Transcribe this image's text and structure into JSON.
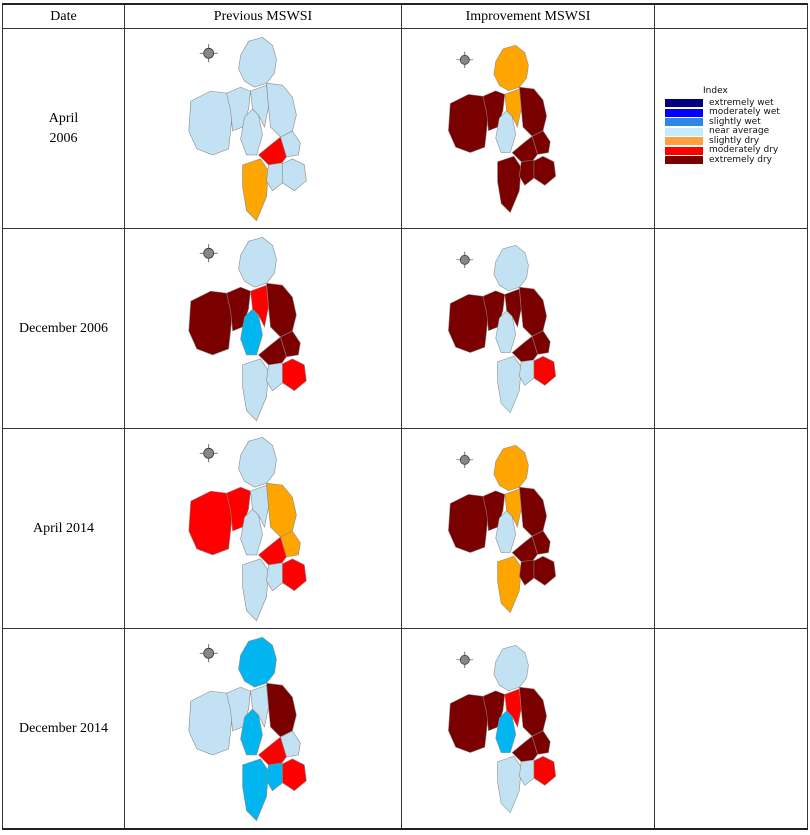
{
  "table": {
    "headers": [
      "Date",
      "Previous MSWSI",
      "Improvement MSWSI",
      ""
    ],
    "rows": [
      {
        "date": "April\n2006",
        "prev": [
          "#c2e2f3",
          "#c2e2f3",
          "#c2e2f3",
          "#c2e2f3",
          "#c2e2f3",
          "#c2e2f3",
          "#c2e2f3",
          "#ff0000",
          "#ffa500",
          "#c2e2f3",
          "#c2e2f3"
        ],
        "impr": [
          "#ffa500",
          "#7a0000",
          "#7a0000",
          "#7a0000",
          "#c2e2f3",
          "#ffa500",
          "#7a0000",
          "#7a0000",
          "#7a0000",
          "#7a0000",
          "#7a0000"
        ]
      },
      {
        "date": "December 2006",
        "prev": [
          "#c2e2f3",
          "#7a0000",
          "#7a0000",
          "#7a0000",
          "#00b5f0",
          "#ff0000",
          "#7a0000",
          "#7a0000",
          "#c2e2f3",
          "#ff0000",
          "#c2e2f3"
        ],
        "impr": [
          "#c2e2f3",
          "#7a0000",
          "#7a0000",
          "#7a0000",
          "#c2e2f3",
          "#7a0000",
          "#7a0000",
          "#7a0000",
          "#c2e2f3",
          "#ff0000",
          "#c2e2f3"
        ]
      },
      {
        "date": "April 2014",
        "prev": [
          "#c2e2f3",
          "#ff0000",
          "#ff0000",
          "#ffa500",
          "#c2e2f3",
          "#c2e2f3",
          "#ffa500",
          "#ff0000",
          "#c2e2f3",
          "#ff0000",
          "#c2e2f3"
        ],
        "impr": [
          "#ffa500",
          "#7a0000",
          "#7a0000",
          "#7a0000",
          "#c2e2f3",
          "#ffa500",
          "#7a0000",
          "#7a0000",
          "#ffa500",
          "#7a0000",
          "#7a0000"
        ]
      },
      {
        "date": "December 2014",
        "prev": [
          "#00b5f0",
          "#c2e2f3",
          "#c2e2f3",
          "#7a0000",
          "#00b5f0",
          "#c2e2f3",
          "#c2e2f3",
          "#ff0000",
          "#00b5f0",
          "#ff0000",
          "#00b5f0"
        ],
        "impr": [
          "#c2e2f3",
          "#7a0000",
          "#7a0000",
          "#7a0000",
          "#00b5f0",
          "#ff0000",
          "#7a0000",
          "#7a0000",
          "#c2e2f3",
          "#ff0000",
          "#c2e2f3"
        ]
      }
    ]
  },
  "legend": {
    "title": "Index",
    "items": [
      {
        "label": "extremely wet",
        "color": "#000080"
      },
      {
        "label": "moderately wet",
        "color": "#0000ff"
      },
      {
        "label": "slightly wet",
        "color": "#2e86e6"
      },
      {
        "label": "near average",
        "color": "#c8ecff"
      },
      {
        "label": "slightly dry",
        "color": "#ffa040"
      },
      {
        "label": "moderately dry",
        "color": "#ff0000"
      },
      {
        "label": "extremely dry",
        "color": "#7a0000"
      }
    ]
  }
}
